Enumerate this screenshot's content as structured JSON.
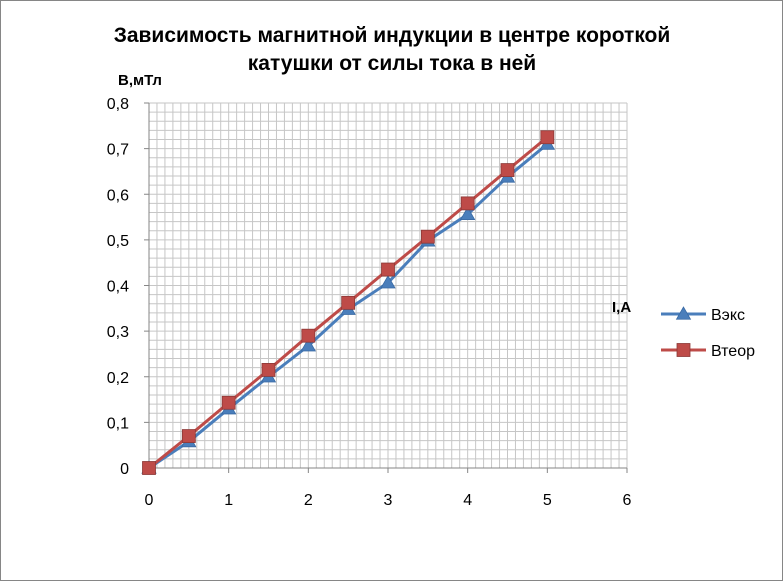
{
  "chart_data": {
    "type": "line",
    "title_line1": "Зависимость магнитной индукции в центре короткой",
    "title_line2": "катушки от силы тока в ней",
    "ylabel": "B,мТл",
    "xlabel": "I,A",
    "xlim": [
      0,
      6
    ],
    "ylim": [
      0,
      0.8
    ],
    "x_ticks": [
      "0",
      "1",
      "2",
      "3",
      "4",
      "5",
      "6"
    ],
    "y_ticks": [
      "0",
      "0,1",
      "0,2",
      "0,3",
      "0,4",
      "0,5",
      "0,6",
      "0,7",
      "0,8"
    ],
    "grid": true,
    "legend_position": "right",
    "x": [
      0,
      0.5,
      1,
      1.5,
      2,
      2.5,
      3,
      3.5,
      4,
      4.5,
      5
    ],
    "series": [
      {
        "name": "Вэкс",
        "color": "#4a7ebb",
        "marker": "triangle",
        "values": [
          0,
          0.058,
          0.13,
          0.2,
          0.268,
          0.348,
          0.406,
          0.498,
          0.556,
          0.638,
          0.71
        ]
      },
      {
        "name": "Втеор",
        "color": "#be4b48",
        "marker": "square",
        "values": [
          0,
          0.07,
          0.143,
          0.215,
          0.29,
          0.362,
          0.435,
          0.507,
          0.58,
          0.653,
          0.725
        ]
      }
    ]
  }
}
